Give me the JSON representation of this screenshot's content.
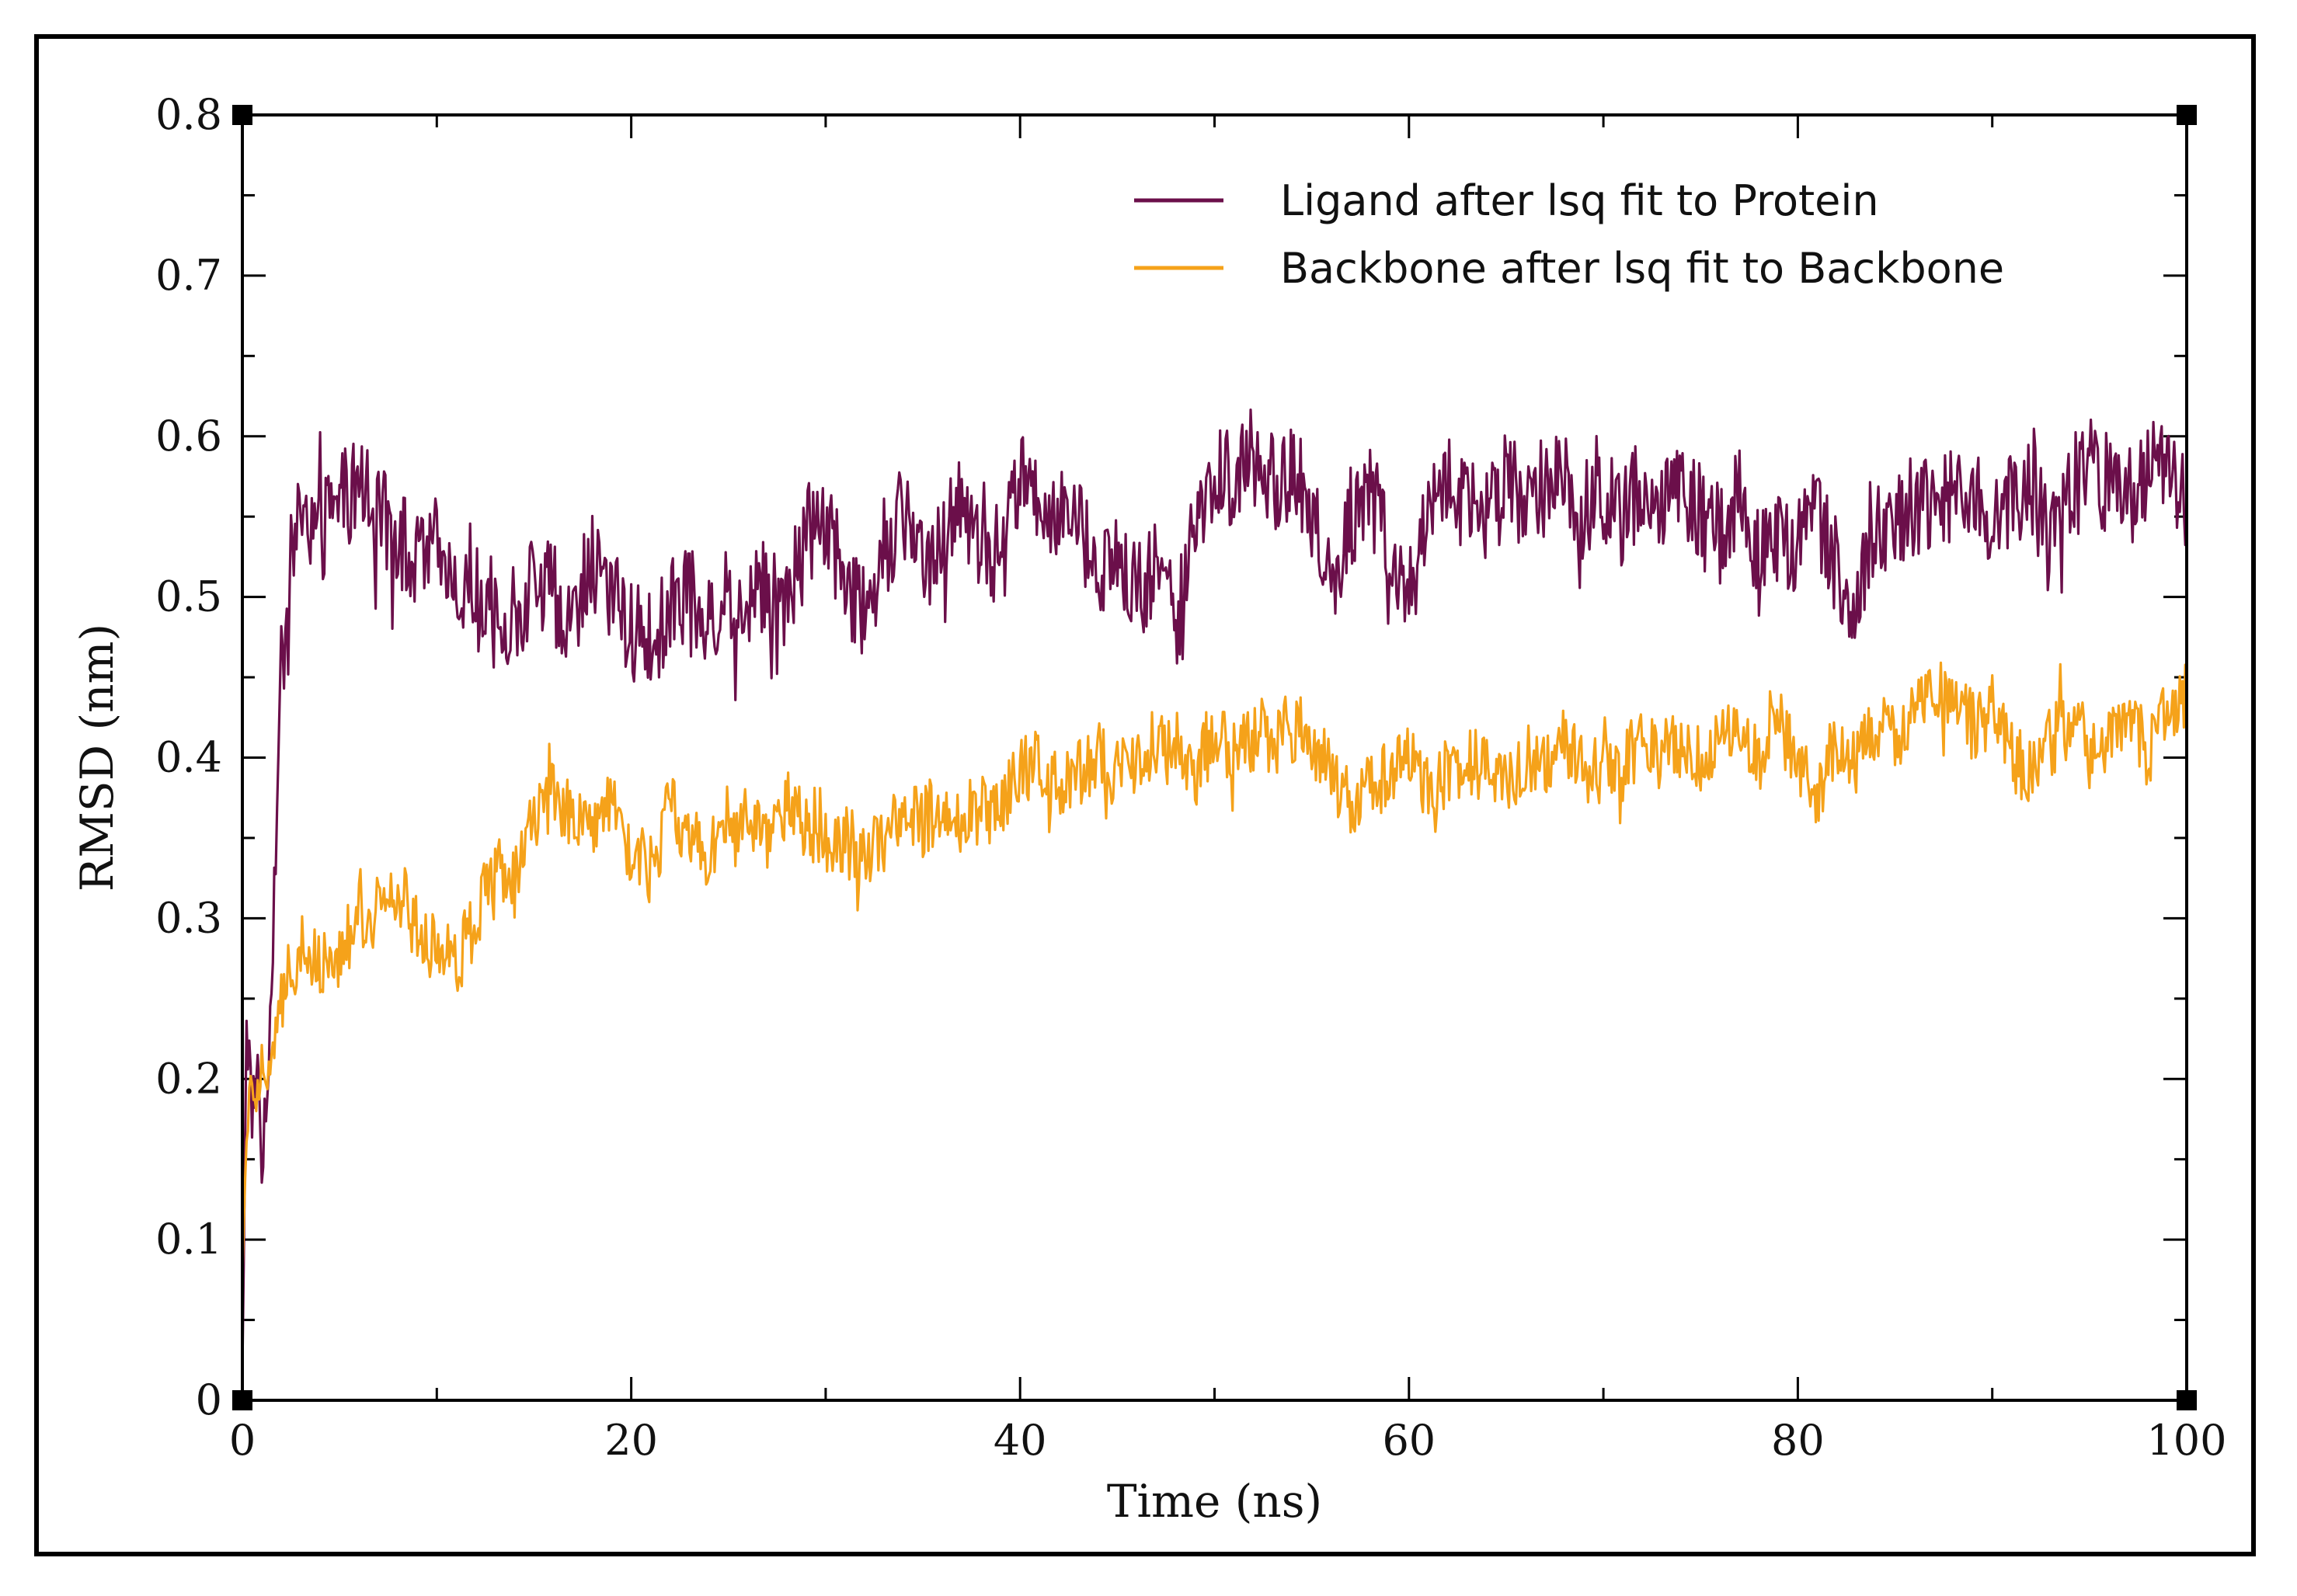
{
  "chart_data": {
    "type": "line",
    "title": "",
    "xlabel": "Time (ns)",
    "ylabel": "RMSD (nm)",
    "xlim": [
      0,
      100
    ],
    "ylim": [
      0,
      0.8
    ],
    "xticks": [
      0,
      20,
      40,
      60,
      80,
      100
    ],
    "xtick_labels": [
      "0",
      "20",
      "40",
      "60",
      "80",
      "100"
    ],
    "yticks": [
      0,
      0.1,
      0.2,
      0.3,
      0.4,
      0.5,
      0.6,
      0.7,
      0.8
    ],
    "ytick_labels": [
      "0",
      "0.1",
      "0.2",
      "0.3",
      "0.4",
      "0.5",
      "0.6",
      "0.7",
      "0.8"
    ],
    "grid": false,
    "legend_position": "top-right",
    "series": [
      {
        "name": "Ligand after lsq fit to Protein",
        "color": "#6b0f4a",
        "x": [
          0,
          0.2,
          0.5,
          0.8,
          1.0,
          1.3,
          1.6,
          2.0,
          2.5,
          3.0,
          4,
          5,
          6,
          7,
          8,
          9,
          10,
          11,
          12,
          13,
          14,
          15,
          16,
          17,
          18,
          19,
          20,
          21,
          22,
          23,
          24,
          25,
          26,
          27,
          28,
          29,
          30,
          31,
          32,
          33,
          34,
          35,
          36,
          37,
          38,
          39,
          40,
          41,
          42,
          43,
          44,
          45,
          46,
          47,
          48,
          49,
          50,
          51,
          52,
          53,
          54,
          55,
          56,
          57,
          58,
          59,
          60,
          61,
          62,
          63,
          64,
          65,
          66,
          67,
          68,
          69,
          70,
          71,
          72,
          73,
          74,
          75,
          76,
          77,
          78,
          79,
          80,
          81,
          82,
          83,
          84,
          85,
          86,
          87,
          88,
          89,
          90,
          91,
          92,
          93,
          94,
          95,
          96,
          97,
          98,
          99,
          100
        ],
        "values": [
          0.01,
          0.24,
          0.18,
          0.21,
          0.15,
          0.2,
          0.3,
          0.45,
          0.52,
          0.55,
          0.54,
          0.56,
          0.57,
          0.55,
          0.54,
          0.52,
          0.53,
          0.51,
          0.5,
          0.48,
          0.49,
          0.51,
          0.5,
          0.49,
          0.52,
          0.5,
          0.48,
          0.47,
          0.49,
          0.51,
          0.48,
          0.5,
          0.49,
          0.51,
          0.5,
          0.54,
          0.55,
          0.51,
          0.49,
          0.53,
          0.55,
          0.52,
          0.54,
          0.57,
          0.53,
          0.51,
          0.58,
          0.56,
          0.55,
          0.54,
          0.52,
          0.53,
          0.5,
          0.52,
          0.48,
          0.55,
          0.58,
          0.57,
          0.59,
          0.57,
          0.58,
          0.56,
          0.5,
          0.55,
          0.57,
          0.52,
          0.5,
          0.56,
          0.57,
          0.56,
          0.55,
          0.57,
          0.56,
          0.57,
          0.58,
          0.55,
          0.56,
          0.55,
          0.57,
          0.56,
          0.57,
          0.55,
          0.54,
          0.56,
          0.52,
          0.54,
          0.53,
          0.55,
          0.52,
          0.5,
          0.54,
          0.55,
          0.56,
          0.55,
          0.57,
          0.56,
          0.55,
          0.56,
          0.57,
          0.53,
          0.56,
          0.58,
          0.57,
          0.56,
          0.58,
          0.59,
          0.56
        ]
      },
      {
        "name": "Backbone after lsq fit to Backbone",
        "color": "#f5a21a",
        "x": [
          0,
          0.2,
          0.5,
          0.8,
          1.0,
          1.3,
          1.6,
          2.0,
          2.5,
          3.0,
          4,
          5,
          6,
          7,
          8,
          9,
          10,
          11,
          12,
          13,
          14,
          15,
          16,
          17,
          18,
          19,
          20,
          21,
          22,
          23,
          24,
          25,
          26,
          27,
          28,
          29,
          30,
          31,
          32,
          33,
          34,
          35,
          36,
          37,
          38,
          39,
          40,
          41,
          42,
          43,
          44,
          45,
          46,
          47,
          48,
          49,
          50,
          51,
          52,
          53,
          54,
          55,
          56,
          57,
          58,
          59,
          60,
          61,
          62,
          63,
          64,
          65,
          66,
          67,
          68,
          69,
          70,
          71,
          72,
          73,
          74,
          75,
          76,
          77,
          78,
          79,
          80,
          81,
          82,
          83,
          84,
          85,
          86,
          87,
          88,
          89,
          90,
          91,
          92,
          93,
          94,
          95,
          96,
          97,
          98,
          99,
          100
        ],
        "values": [
          0.09,
          0.17,
          0.2,
          0.19,
          0.21,
          0.2,
          0.22,
          0.25,
          0.27,
          0.28,
          0.27,
          0.28,
          0.3,
          0.31,
          0.32,
          0.29,
          0.28,
          0.27,
          0.3,
          0.33,
          0.32,
          0.36,
          0.38,
          0.36,
          0.35,
          0.37,
          0.34,
          0.33,
          0.37,
          0.35,
          0.34,
          0.35,
          0.36,
          0.35,
          0.37,
          0.36,
          0.35,
          0.35,
          0.34,
          0.35,
          0.36,
          0.36,
          0.37,
          0.36,
          0.37,
          0.37,
          0.39,
          0.4,
          0.38,
          0.39,
          0.4,
          0.39,
          0.4,
          0.41,
          0.4,
          0.39,
          0.42,
          0.4,
          0.41,
          0.41,
          0.42,
          0.41,
          0.39,
          0.37,
          0.38,
          0.39,
          0.4,
          0.38,
          0.39,
          0.4,
          0.39,
          0.38,
          0.4,
          0.39,
          0.41,
          0.4,
          0.39,
          0.4,
          0.41,
          0.4,
          0.41,
          0.4,
          0.41,
          0.42,
          0.4,
          0.42,
          0.4,
          0.38,
          0.41,
          0.4,
          0.42,
          0.41,
          0.43,
          0.44,
          0.43,
          0.42,
          0.43,
          0.4,
          0.39,
          0.41,
          0.42,
          0.41,
          0.42,
          0.43,
          0.4,
          0.43,
          0.44
        ]
      }
    ]
  }
}
